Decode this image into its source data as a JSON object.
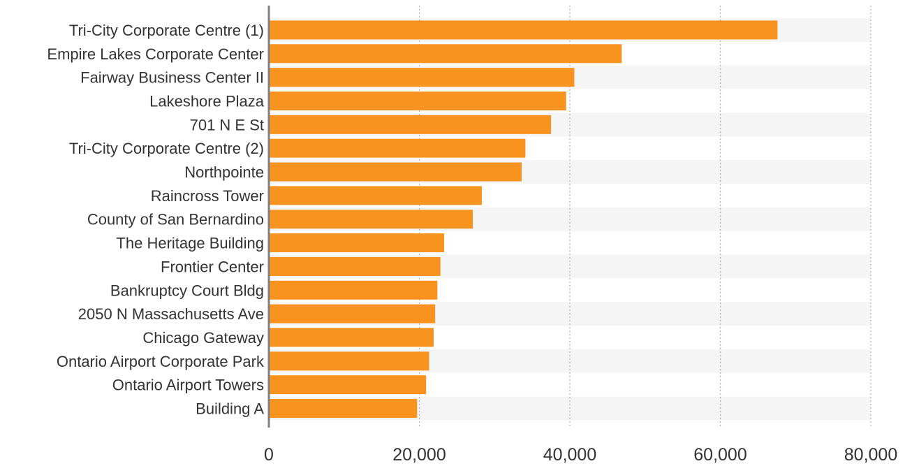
{
  "chart_data": {
    "type": "bar",
    "orientation": "horizontal",
    "title": "",
    "xlabel": "",
    "ylabel": "",
    "xlim": [
      0,
      80000
    ],
    "x_ticks": [
      0,
      20000,
      40000,
      60000,
      80000
    ],
    "x_tick_labels": [
      "0",
      "20,000",
      "40,000",
      "60,000",
      "80,000"
    ],
    "grid": "vertical dotted",
    "legend": "none",
    "categories": [
      "Tri-City Corporate Centre (1)",
      "Empire Lakes Corporate Center",
      "Fairway Business Center II",
      "Lakeshore Plaza",
      "701 N E St",
      "Tri-City Corporate Centre (2)",
      "Northpointe",
      "Raincross Tower",
      "County of San Bernardino",
      "The Heritage Building",
      "Frontier Center",
      "Bankruptcy Court Bldg",
      "2050 N Massachusetts Ave",
      "Chicago Gateway",
      "Ontario Airport Corporate Park",
      "Ontario Airport Towers",
      "Building A"
    ],
    "values": [
      67600,
      46900,
      40600,
      39500,
      37500,
      34100,
      33600,
      28300,
      27100,
      23300,
      22800,
      22400,
      22100,
      21900,
      21300,
      20900,
      19700
    ],
    "bar_color": "#F7931E",
    "band_color": "#F5F5F5",
    "axis_color": "#808080",
    "grid_color": "#B0B0B0"
  }
}
